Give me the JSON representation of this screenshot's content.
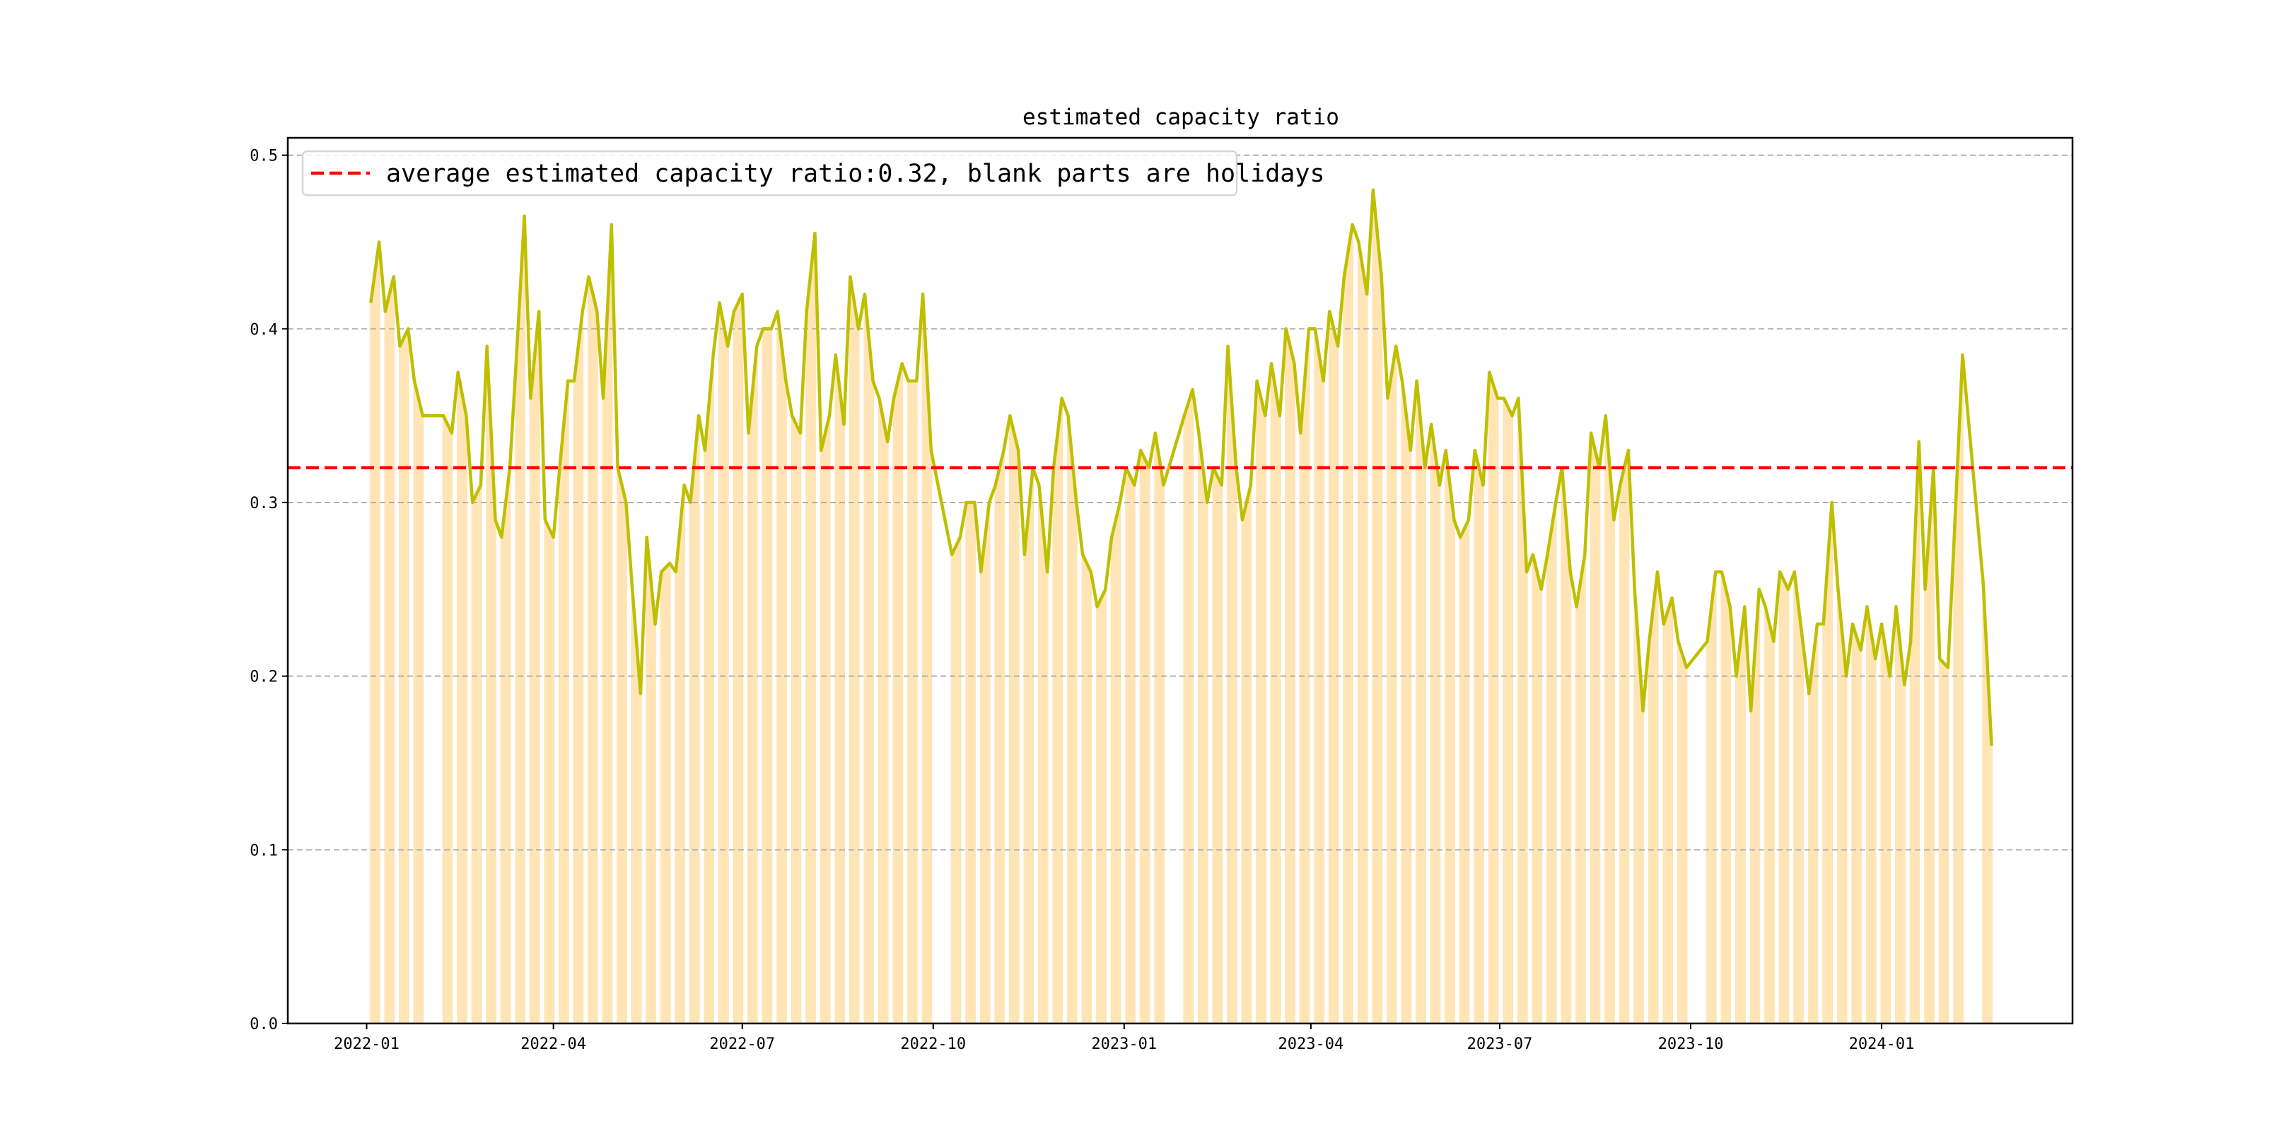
{
  "chart_data": {
    "type": "bar+line",
    "title": "estimated capacity ratio",
    "xlabel": "",
    "ylabel": "",
    "xlim": [
      "2021-11-24",
      "2024-04-02"
    ],
    "ylim": [
      0,
      0.51
    ],
    "grid": "y-dashed",
    "legend_placement": "top-left",
    "legend": [
      "average estimated capacity ratio:0.32, blank parts are holidays"
    ],
    "average_line": 0.32,
    "x_ticks": [
      {
        "date": "2022-01-01",
        "label": "2022-01"
      },
      {
        "date": "2022-04-01",
        "label": "2022-04"
      },
      {
        "date": "2022-07-01",
        "label": "2022-07"
      },
      {
        "date": "2022-10-01",
        "label": "2022-10"
      },
      {
        "date": "2023-01-01",
        "label": "2023-01"
      },
      {
        "date": "2023-04-01",
        "label": "2023-04"
      },
      {
        "date": "2023-07-01",
        "label": "2023-07"
      },
      {
        "date": "2023-10-01",
        "label": "2023-10"
      },
      {
        "date": "2024-01-01",
        "label": "2024-01"
      }
    ],
    "y_ticks": [
      {
        "value": 0.0,
        "label": "0.0"
      },
      {
        "value": 0.1,
        "label": "0.1"
      },
      {
        "value": 0.2,
        "label": "0.2"
      },
      {
        "value": 0.3,
        "label": "0.3"
      },
      {
        "value": 0.4,
        "label": "0.4"
      },
      {
        "value": 0.5,
        "label": "0.5"
      }
    ],
    "weekly_series_start": "2022-01-03",
    "weekly_values_note": "each entry = [start-of-week, end-of-week] ratio; null = holiday week",
    "weekly_values": [
      [
        0.415,
        0.45
      ],
      [
        0.41,
        0.43
      ],
      [
        0.39,
        0.4
      ],
      [
        0.37,
        0.35
      ],
      null,
      [
        0.35,
        0.34
      ],
      [
        0.375,
        0.35
      ],
      [
        0.3,
        0.31
      ],
      [
        0.39,
        0.29
      ],
      [
        0.28,
        0.32
      ],
      [
        0.38,
        0.465
      ],
      [
        0.36,
        0.41
      ],
      [
        0.29,
        0.28
      ],
      [
        0.32,
        0.37
      ],
      [
        0.37,
        0.41
      ],
      [
        0.43,
        0.41
      ],
      [
        0.36,
        0.46
      ],
      [
        0.32,
        0.3
      ],
      [
        0.25,
        0.19
      ],
      [
        0.28,
        0.23
      ],
      [
        0.26,
        0.265
      ],
      [
        0.26,
        0.31
      ],
      [
        0.3,
        0.35
      ],
      [
        0.33,
        0.385
      ],
      [
        0.415,
        0.39
      ],
      [
        0.41,
        0.42
      ],
      [
        0.34,
        0.39
      ],
      [
        0.4,
        0.4
      ],
      [
        0.41,
        0.37
      ],
      [
        0.35,
        0.34
      ],
      [
        0.41,
        0.455
      ],
      [
        0.33,
        0.35
      ],
      [
        0.385,
        0.345
      ],
      [
        0.43,
        0.4
      ],
      [
        0.42,
        0.37
      ],
      [
        0.36,
        0.335
      ],
      [
        0.36,
        0.38
      ],
      [
        0.37,
        0.37
      ],
      [
        0.42,
        0.33
      ],
      null,
      [
        0.27,
        0.28
      ],
      [
        0.3,
        0.3
      ],
      [
        0.26,
        0.3
      ],
      [
        0.31,
        0.33
      ],
      [
        0.35,
        0.33
      ],
      [
        0.27,
        0.32
      ],
      [
        0.31,
        0.26
      ],
      [
        0.32,
        0.36
      ],
      [
        0.35,
        0.3
      ],
      [
        0.27,
        0.26
      ],
      [
        0.24,
        0.25
      ],
      [
        0.28,
        0.3
      ],
      [
        0.32,
        0.31
      ],
      [
        0.33,
        0.32
      ],
      [
        0.34,
        0.31
      ],
      null,
      [
        0.35,
        0.365
      ],
      [
        0.34,
        0.3
      ],
      [
        0.32,
        0.31
      ],
      [
        0.39,
        0.32
      ],
      [
        0.29,
        0.31
      ],
      [
        0.37,
        0.35
      ],
      [
        0.38,
        0.35
      ],
      [
        0.4,
        0.38
      ],
      [
        0.34,
        0.4
      ],
      [
        0.4,
        0.37
      ],
      [
        0.41,
        0.39
      ],
      [
        0.43,
        0.46
      ],
      [
        0.45,
        0.42
      ],
      [
        0.48,
        0.43
      ],
      [
        0.36,
        0.39
      ],
      [
        0.37,
        0.33
      ],
      [
        0.37,
        0.32
      ],
      [
        0.345,
        0.31
      ],
      [
        0.33,
        0.29
      ],
      [
        0.28,
        0.29
      ],
      [
        0.33,
        0.31
      ],
      [
        0.375,
        0.36
      ],
      [
        0.36,
        0.35
      ],
      [
        0.36,
        0.26
      ],
      [
        0.27,
        0.25
      ],
      [
        0.27,
        0.3
      ],
      [
        0.32,
        0.26
      ],
      [
        0.24,
        0.27
      ],
      [
        0.34,
        0.32
      ],
      [
        0.35,
        0.29
      ],
      [
        0.31,
        0.33
      ],
      [
        0.25,
        0.18
      ],
      [
        0.22,
        0.26
      ],
      [
        0.23,
        0.245
      ],
      [
        0.22,
        0.205
      ],
      null,
      [
        0.22,
        0.26
      ],
      [
        0.26,
        0.24
      ],
      [
        0.2,
        0.24
      ],
      [
        0.18,
        0.25
      ],
      [
        0.24,
        0.22
      ],
      [
        0.26,
        0.25
      ],
      [
        0.26,
        0.22
      ],
      [
        0.19,
        0.23
      ],
      [
        0.23,
        0.3
      ],
      [
        0.25,
        0.2
      ],
      [
        0.23,
        0.215
      ],
      [
        0.24,
        0.21
      ],
      [
        0.23,
        0.2
      ],
      [
        0.24,
        0.195
      ],
      [
        0.22,
        0.335
      ],
      [
        0.25,
        0.32
      ],
      [
        0.21,
        0.205
      ],
      [
        0.28,
        0.385
      ],
      null,
      [
        0.253,
        0.16
      ]
    ],
    "colors": {
      "bar": "#ffe4b5",
      "line": "#bfbf00",
      "average": "#ff0000",
      "grid": "#b0b0b0"
    }
  }
}
